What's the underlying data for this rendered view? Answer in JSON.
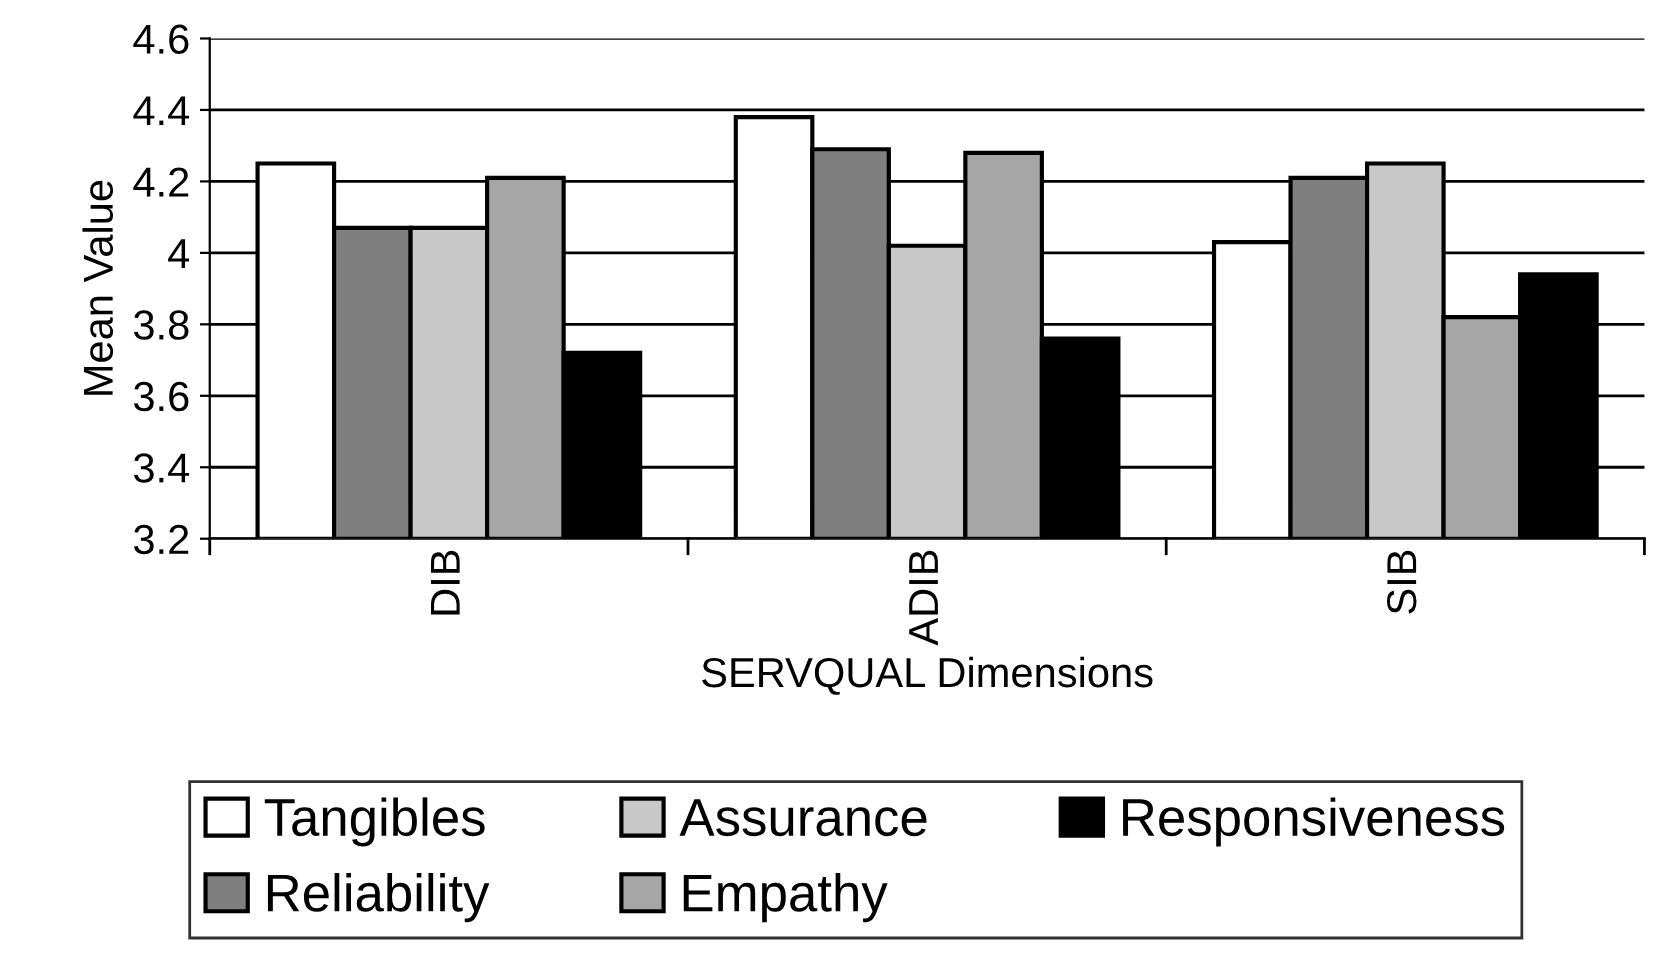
{
  "chart_data": {
    "type": "bar",
    "xlabel": "SERVQUAL Dimensions",
    "ylabel": "Mean Value",
    "categories": [
      "DIB",
      "ADIB",
      "SIB"
    ],
    "series": [
      {
        "name": "Tangibles",
        "color": "#ffffff",
        "values": [
          4.25,
          4.38,
          4.03
        ]
      },
      {
        "name": "Reliability",
        "color": "#7f7f7f",
        "values": [
          4.07,
          4.29,
          4.21
        ]
      },
      {
        "name": "Assurance",
        "color": "#c8c8c8",
        "values": [
          4.07,
          4.02,
          4.25
        ]
      },
      {
        "name": "Empathy",
        "color": "#a6a6a6",
        "values": [
          4.21,
          4.28,
          3.82
        ]
      },
      {
        "name": "Responsiveness",
        "color": "#000000",
        "values": [
          3.72,
          3.76,
          3.94
        ]
      }
    ],
    "ylim": [
      3.2,
      4.6
    ],
    "yticks": [
      3.2,
      3.4,
      3.6,
      3.8,
      4,
      4.2,
      4.4,
      4.6
    ],
    "grid": "y",
    "legend": "bottom"
  }
}
